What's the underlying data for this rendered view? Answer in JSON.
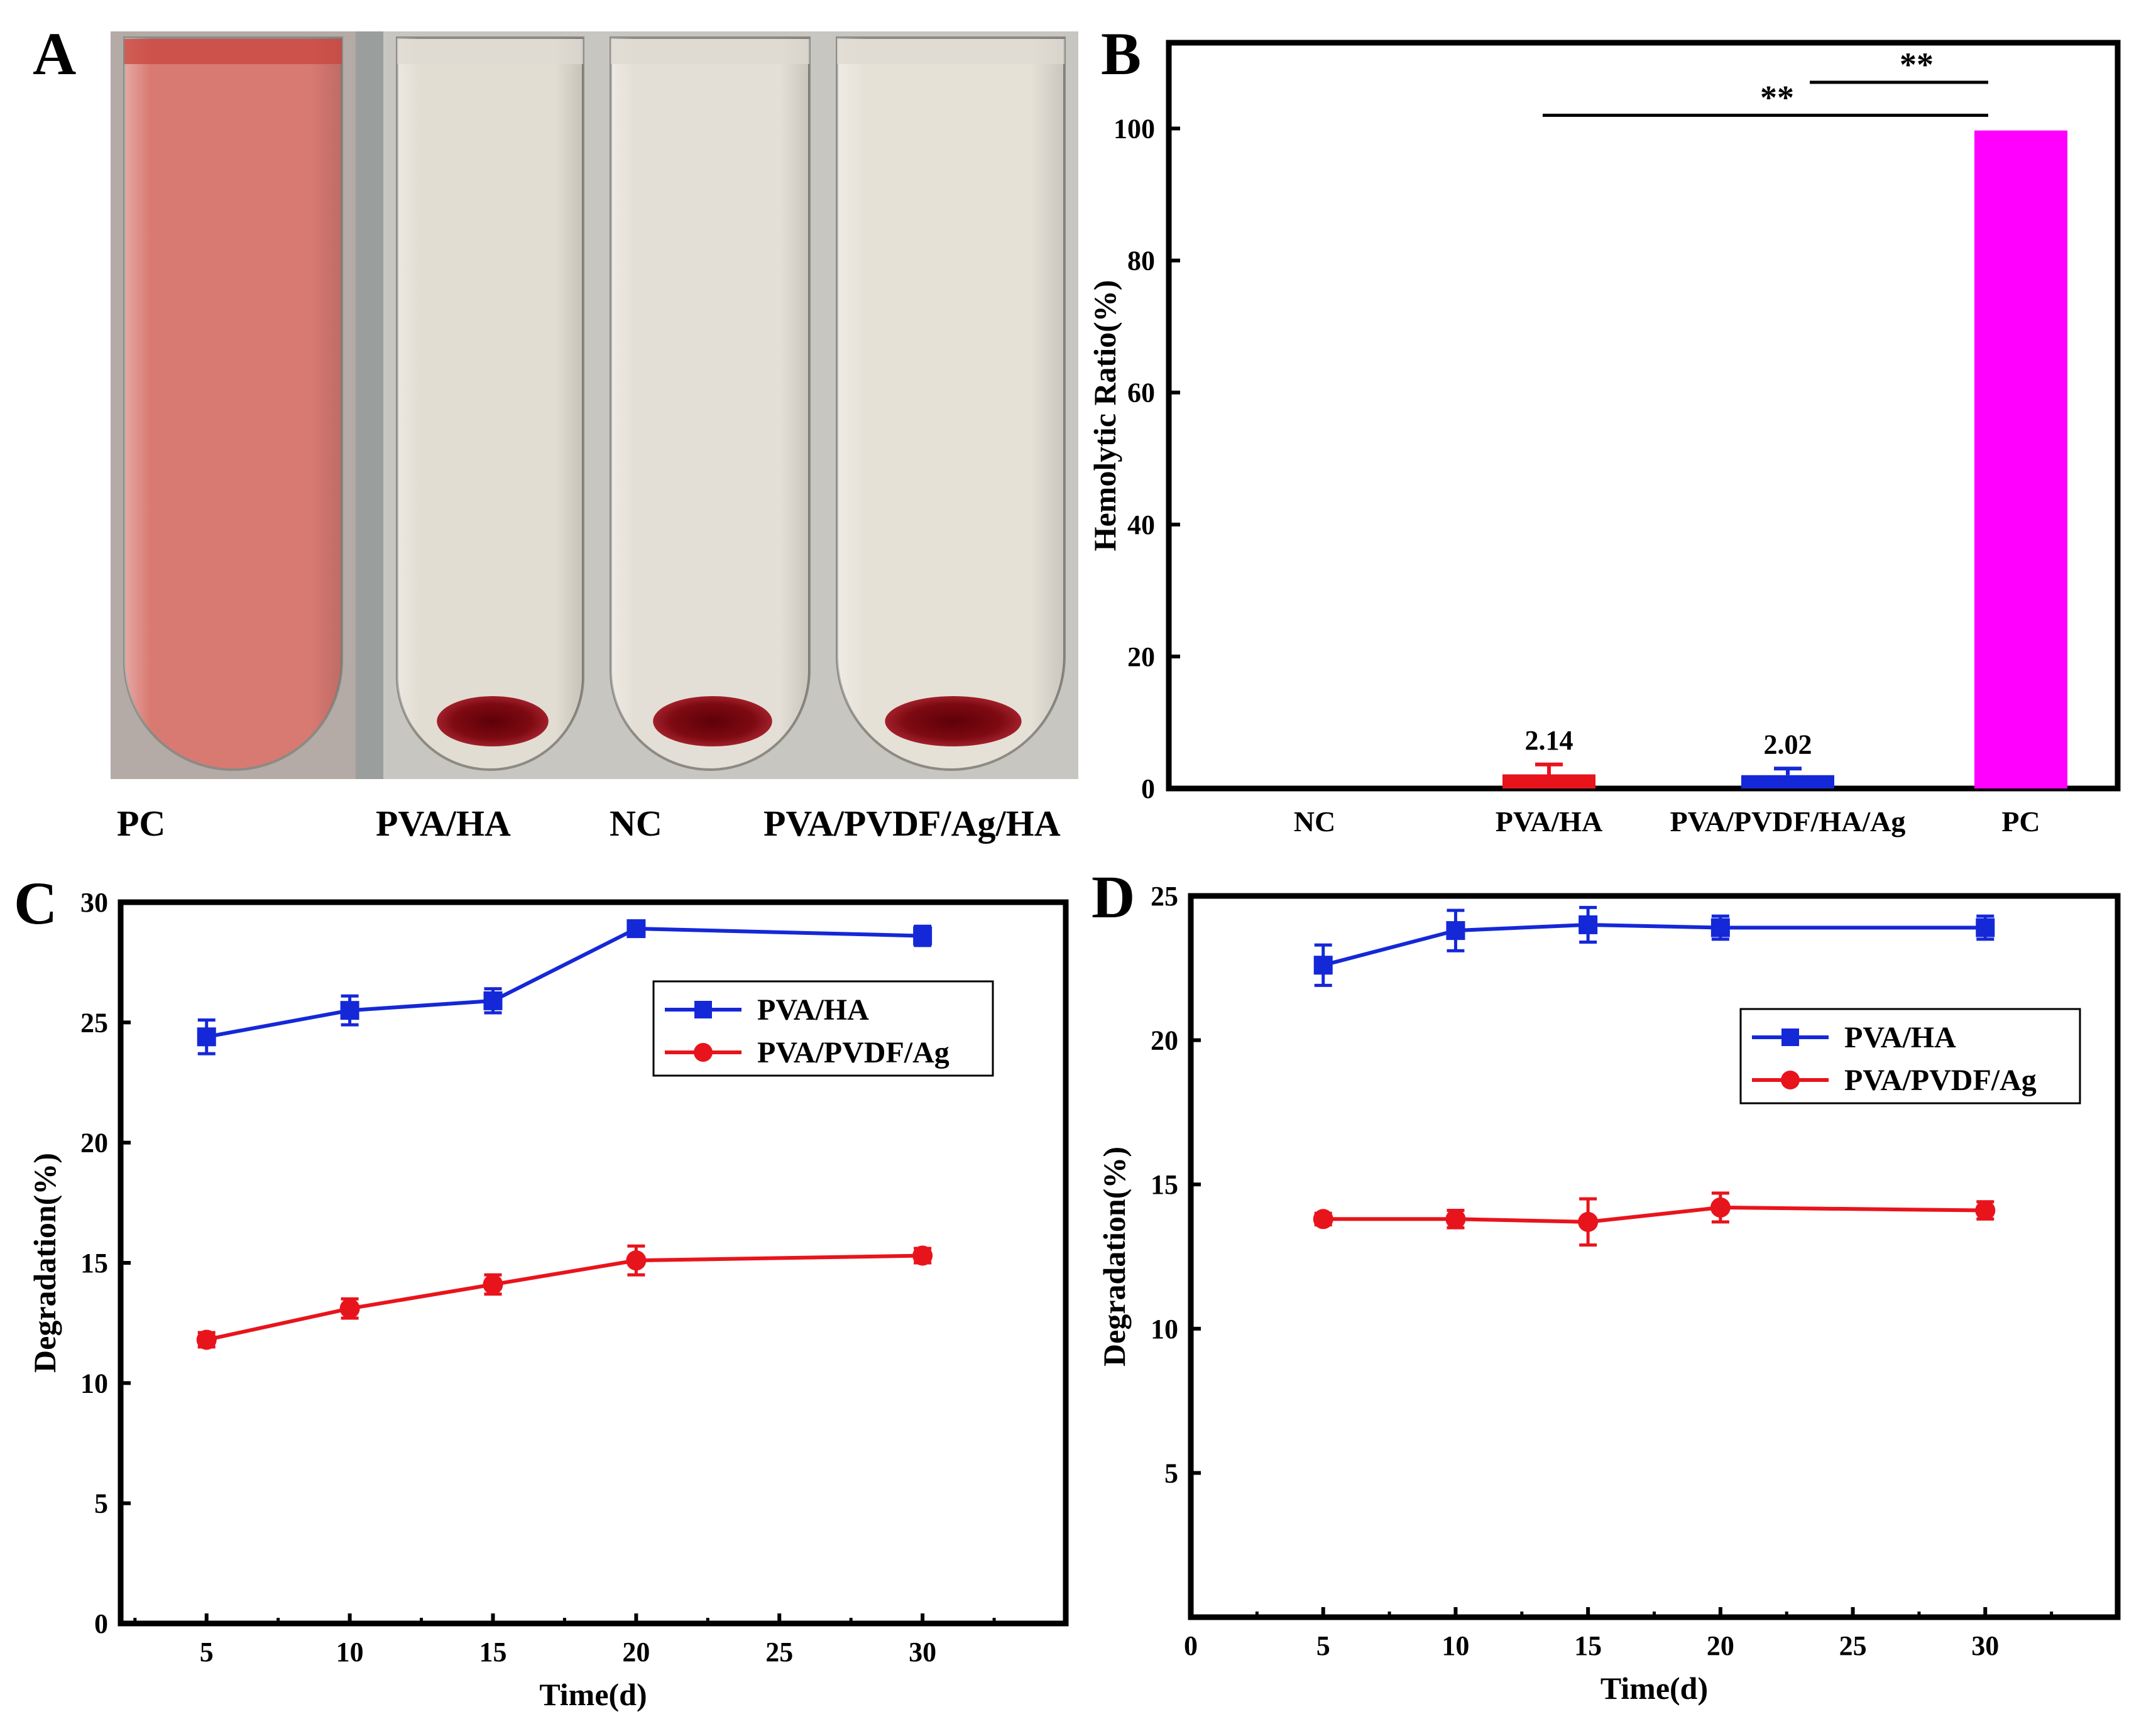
{
  "panels": {
    "A": {
      "label": "A",
      "tubes": [
        {
          "name": "PC",
          "liquid": "#d97a72",
          "pellet": false
        },
        {
          "name": "PVA/HA",
          "liquid": "#e2ddd2",
          "pellet": true
        },
        {
          "name": "NC",
          "liquid": "#e4dfd6",
          "pellet": true
        },
        {
          "name": "PVA/PVDF/Ag/HA",
          "liquid": "#e6e1d7",
          "pellet": true
        }
      ],
      "tube_labels": [
        "PC",
        "PVA/HA",
        "NC",
        "PVA/PVDF/Ag/HA"
      ],
      "pellet_color": "#8e0c14"
    }
  },
  "chart_data": [
    {
      "panel": "B",
      "type": "bar",
      "label": "B",
      "categories": [
        "NC",
        "PVA/HA",
        "PVA/PVDF/HA/Ag",
        "PC"
      ],
      "values": [
        0,
        2.14,
        2.02,
        99.7
      ],
      "errors": [
        0,
        1.5,
        1.0,
        0
      ],
      "colors": [
        "#000000",
        "#e8141c",
        "#1428d8",
        "#ff00ff"
      ],
      "value_labels": [
        "",
        "2.14",
        "2.02",
        ""
      ],
      "ylabel": "Hemolytic Ratio(%)",
      "xlabel": "",
      "ylim": [
        0,
        113
      ],
      "yticks": [
        0,
        20,
        40,
        60,
        80,
        100
      ],
      "significance": [
        {
          "from": "PVA/PVDF/HA/Ag",
          "to": "PC",
          "label": "**",
          "y": 107
        },
        {
          "from": "PVA/HA",
          "to": "PC",
          "label": "**",
          "y": 102
        }
      ]
    },
    {
      "panel": "C",
      "type": "line",
      "label": "C",
      "xlabel": "Time(d)",
      "ylabel": "Degradation(%)",
      "xlim": [
        2,
        35
      ],
      "ylim": [
        0,
        30
      ],
      "xticks": [
        5,
        10,
        15,
        20,
        25,
        30
      ],
      "yticks": [
        0,
        5,
        10,
        15,
        20,
        25,
        30
      ],
      "legend_position": "upper-right",
      "series": [
        {
          "name": "PVA/HA",
          "color": "#1428d8",
          "marker": "square",
          "x": [
            5,
            10,
            15,
            20,
            30
          ],
          "y": [
            24.4,
            25.5,
            25.9,
            28.9,
            28.6
          ],
          "err": [
            0.7,
            0.6,
            0.5,
            0.3,
            0.4
          ]
        },
        {
          "name": "PVA/PVDF/Ag",
          "color": "#e8141c",
          "marker": "circle",
          "x": [
            5,
            10,
            15,
            20,
            30
          ],
          "y": [
            11.8,
            13.1,
            14.1,
            15.1,
            15.3
          ],
          "err": [
            0.3,
            0.4,
            0.4,
            0.6,
            0.3
          ]
        }
      ]
    },
    {
      "panel": "D",
      "type": "line",
      "label": "D",
      "xlabel": "Time(d)",
      "ylabel": "Degradation(%)",
      "xlim": [
        0,
        35
      ],
      "ylim": [
        0,
        25
      ],
      "xticks": [
        0,
        5,
        10,
        15,
        20,
        25,
        30
      ],
      "yticks": [
        5,
        10,
        15,
        20,
        25
      ],
      "legend_position": "upper-right",
      "series": [
        {
          "name": "PVA/HA",
          "color": "#1428d8",
          "marker": "square",
          "x": [
            5,
            10,
            15,
            20,
            30
          ],
          "y": [
            22.6,
            23.8,
            24.0,
            23.9,
            23.9
          ],
          "err": [
            0.7,
            0.7,
            0.6,
            0.4,
            0.4
          ]
        },
        {
          "name": "PVA/PVDF/Ag",
          "color": "#e8141c",
          "marker": "circle",
          "x": [
            5,
            10,
            15,
            20,
            30
          ],
          "y": [
            13.8,
            13.8,
            13.7,
            14.2,
            14.1
          ],
          "err": [
            0.2,
            0.3,
            0.8,
            0.5,
            0.3
          ]
        }
      ]
    }
  ]
}
